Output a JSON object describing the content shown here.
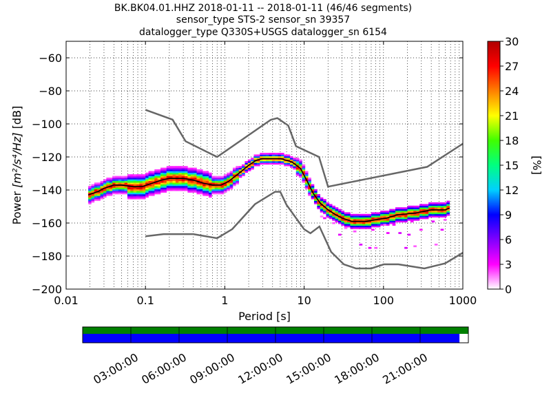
{
  "chart_data": {
    "type": "heatmap",
    "title_lines": [
      "BK.BK04.01.HHZ   2018-01-11 -- 2018-01-11  (46/46 segments)",
      "sensor_type STS-2 sensor_sn 39357",
      "datalogger_type Q330S+USGS datalogger_sn 6154"
    ],
    "xlabel": "Period [s]",
    "ylabel_prefix": "Power ",
    "ylabel_units": "[m²/s⁴/Hz]",
    "ylabel_suffix": " [dB]",
    "xscale": "log",
    "xlim": [
      0.01,
      1000
    ],
    "ylim": [
      -200,
      -50
    ],
    "xticks": [
      {
        "value": 0.01,
        "label": "0.01"
      },
      {
        "value": 0.1,
        "label": "0.1"
      },
      {
        "value": 1,
        "label": "1"
      },
      {
        "value": 10,
        "label": "10"
      },
      {
        "value": 100,
        "label": "100"
      },
      {
        "value": 1000,
        "label": "1000"
      }
    ],
    "yticks": [
      {
        "value": -60,
        "label": "−60"
      },
      {
        "value": -80,
        "label": "−80"
      },
      {
        "value": -100,
        "label": "−100"
      },
      {
        "value": -120,
        "label": "−120"
      },
      {
        "value": -140,
        "label": "−140"
      },
      {
        "value": -160,
        "label": "−160"
      },
      {
        "value": -180,
        "label": "−180"
      },
      {
        "value": -200,
        "label": "−200"
      }
    ],
    "grid": "dotted",
    "colorbar": {
      "label": "[%]",
      "range": [
        0,
        30
      ],
      "ticks": [
        {
          "value": 0,
          "label": "0"
        },
        {
          "value": 3,
          "label": "3"
        },
        {
          "value": 6,
          "label": "6"
        },
        {
          "value": 9,
          "label": "9"
        },
        {
          "value": 12,
          "label": "12"
        },
        {
          "value": 15,
          "label": "15"
        },
        {
          "value": 18,
          "label": "18"
        },
        {
          "value": 21,
          "label": "21"
        },
        {
          "value": 24,
          "label": "24"
        },
        {
          "value": 27,
          "label": "27"
        },
        {
          "value": 30,
          "label": "30"
        }
      ],
      "colormap": [
        "#ffffff",
        "#ff00ff",
        "#8000ff",
        "#0000ff",
        "#00d0ff",
        "#00ff80",
        "#40ff00",
        "#ffff00",
        "#ff8000",
        "#ff0000",
        "#b00000"
      ]
    },
    "noise_models": {
      "color": "#666666",
      "high": [
        [
          0.1,
          -91.5
        ],
        [
          0.22,
          -97.4
        ],
        [
          0.32,
          -110.5
        ],
        [
          0.8,
          -120
        ],
        [
          3.8,
          -97.5
        ],
        [
          4.6,
          -96.5
        ],
        [
          6.3,
          -101
        ],
        [
          7.9,
          -113.5
        ],
        [
          15.4,
          -120
        ],
        [
          20,
          -138
        ],
        [
          354.8,
          -126
        ],
        [
          1000,
          -112
        ]
      ],
      "low": [
        [
          0.1,
          -168
        ],
        [
          0.17,
          -166.7
        ],
        [
          0.4,
          -166.7
        ],
        [
          0.8,
          -169.2
        ],
        [
          1.24,
          -163.7
        ],
        [
          2.4,
          -148.6
        ],
        [
          4.3,
          -141.1
        ],
        [
          5,
          -141.1
        ],
        [
          6,
          -149
        ],
        [
          10,
          -163.8
        ],
        [
          12,
          -166.2
        ],
        [
          15.6,
          -162.1
        ],
        [
          21.9,
          -177.5
        ],
        [
          31.6,
          -185
        ],
        [
          45,
          -187.5
        ],
        [
          70,
          -187.5
        ],
        [
          101,
          -185
        ],
        [
          154,
          -185
        ],
        [
          328,
          -187.5
        ],
        [
          600,
          -184.4
        ],
        [
          1000,
          -178
        ]
      ]
    },
    "mode_curve": {
      "color": "#000000",
      "points": [
        [
          0.019,
          -143
        ],
        [
          0.025,
          -141
        ],
        [
          0.03,
          -139
        ],
        [
          0.04,
          -137
        ],
        [
          0.05,
          -137
        ],
        [
          0.07,
          -138
        ],
        [
          0.09,
          -138
        ],
        [
          0.12,
          -136
        ],
        [
          0.16,
          -134
        ],
        [
          0.2,
          -133
        ],
        [
          0.3,
          -133
        ],
        [
          0.4,
          -134
        ],
        [
          0.55,
          -136
        ],
        [
          0.7,
          -137
        ],
        [
          0.9,
          -137
        ],
        [
          1.1,
          -135
        ],
        [
          1.5,
          -130
        ],
        [
          2,
          -125
        ],
        [
          2.5,
          -122
        ],
        [
          3,
          -121
        ],
        [
          4,
          -121
        ],
        [
          5,
          -121
        ],
        [
          7,
          -123
        ],
        [
          9,
          -127
        ],
        [
          11,
          -135
        ],
        [
          13,
          -142
        ],
        [
          16,
          -148
        ],
        [
          20,
          -152
        ],
        [
          25,
          -155
        ],
        [
          30,
          -157
        ],
        [
          40,
          -159
        ],
        [
          60,
          -159
        ],
        [
          80,
          -158
        ],
        [
          110,
          -157
        ],
        [
          150,
          -155
        ],
        [
          250,
          -154
        ],
        [
          400,
          -152
        ],
        [
          600,
          -152
        ],
        [
          680,
          -151
        ]
      ]
    },
    "pdf_peak_percent": 30,
    "pdf_cells_summary": "Probability density of power, 0–30 % per period bin, concentrated along the mode curve"
  },
  "availability": {
    "gap_color": "#008000",
    "data_color": "#0000ff",
    "data_coverage_fraction": 0.977,
    "time_labels": [
      "03:00:00",
      "06:00:00",
      "09:00:00",
      "12:00:00",
      "15:00:00",
      "18:00:00",
      "21:00:00"
    ]
  }
}
